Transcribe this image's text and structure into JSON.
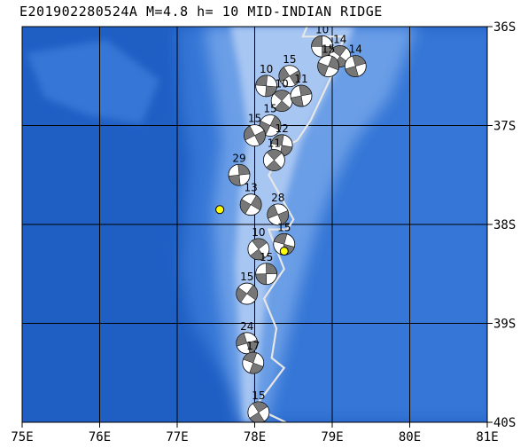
{
  "title": "E201902280524A  M=4.8  h= 10  MID-INDIAN RIDGE",
  "map": {
    "lon_range": [
      75,
      81
    ],
    "lat_range": [
      -40,
      -36
    ],
    "lon_ticks": [
      {
        "value": 75,
        "label": "75E"
      },
      {
        "value": 76,
        "label": "76E"
      },
      {
        "value": 77,
        "label": "77E"
      },
      {
        "value": 78,
        "label": "78E"
      },
      {
        "value": 79,
        "label": "79E"
      },
      {
        "value": 80,
        "label": "80E"
      },
      {
        "value": 81,
        "label": "81E"
      }
    ],
    "lat_ticks": [
      {
        "value": -36,
        "label": "36S"
      },
      {
        "value": -37,
        "label": "37S"
      },
      {
        "value": -38,
        "label": "38S"
      },
      {
        "value": -39,
        "label": "39S"
      },
      {
        "value": -40,
        "label": "40S"
      }
    ],
    "colors": {
      "ocean_deep": "#1f5fc4",
      "ocean_mid": "#3676d6",
      "ridge_shallow": "#6a9ee6",
      "ridge_peak": "#a8c6f2",
      "grid": "#000000",
      "plate_boundary": "#e6e6e6",
      "mechanism_dark": "#777777",
      "mechanism_light": "#ffffff",
      "highlight": "#ffff00"
    },
    "plate_boundary": [
      [
        78.72,
        -35.92
      ],
      [
        78.62,
        -36.1
      ],
      [
        79.15,
        -36.1
      ],
      [
        79.02,
        -36.45
      ],
      [
        78.72,
        -36.95
      ],
      [
        78.55,
        -37.15
      ],
      [
        78.42,
        -37.2
      ],
      [
        78.18,
        -37.5
      ],
      [
        78.5,
        -37.95
      ],
      [
        78.42,
        -38.05
      ],
      [
        78.18,
        -38.05
      ],
      [
        78.38,
        -38.45
      ],
      [
        78.12,
        -38.75
      ],
      [
        78.28,
        -39.05
      ],
      [
        78.22,
        -39.35
      ],
      [
        78.38,
        -39.45
      ],
      [
        78.0,
        -39.85
      ],
      [
        78.4,
        -40.0
      ]
    ],
    "events": [
      {
        "lon": 78.87,
        "lat": -36.2,
        "mag": "10"
      },
      {
        "lon": 79.1,
        "lat": -36.3,
        "mag": "14"
      },
      {
        "lon": 79.3,
        "lat": -36.4,
        "mag": "14"
      },
      {
        "lon": 78.95,
        "lat": -36.4,
        "mag": "15"
      },
      {
        "lon": 78.45,
        "lat": -36.5,
        "mag": "15"
      },
      {
        "lon": 78.15,
        "lat": -36.6,
        "mag": "10"
      },
      {
        "lon": 78.35,
        "lat": -36.75,
        "mag": "10"
      },
      {
        "lon": 78.6,
        "lat": -36.7,
        "mag": "11"
      },
      {
        "lon": 78.2,
        "lat": -37.0,
        "mag": "15"
      },
      {
        "lon": 78.0,
        "lat": -37.1,
        "mag": "15"
      },
      {
        "lon": 78.35,
        "lat": -37.2,
        "mag": "12"
      },
      {
        "lon": 78.25,
        "lat": -37.35,
        "mag": "11"
      },
      {
        "lon": 77.8,
        "lat": -37.5,
        "mag": "29"
      },
      {
        "lon": 77.95,
        "lat": -37.8,
        "mag": "13"
      },
      {
        "lon": 78.3,
        "lat": -37.9,
        "mag": "28"
      },
      {
        "lon": 78.38,
        "lat": -38.2,
        "mag": "15"
      },
      {
        "lon": 78.05,
        "lat": -38.25,
        "mag": "10"
      },
      {
        "lon": 78.15,
        "lat": -38.5,
        "mag": "15"
      },
      {
        "lon": 77.9,
        "lat": -38.7,
        "mag": "15"
      },
      {
        "lon": 77.9,
        "lat": -39.2,
        "mag": "24"
      },
      {
        "lon": 77.98,
        "lat": -39.4,
        "mag": "17"
      },
      {
        "lon": 78.05,
        "lat": -39.9,
        "mag": "15"
      }
    ],
    "highlight_markers": [
      {
        "lon": 78.38,
        "lat": -38.27
      },
      {
        "lon": 77.55,
        "lat": -37.85
      }
    ]
  }
}
